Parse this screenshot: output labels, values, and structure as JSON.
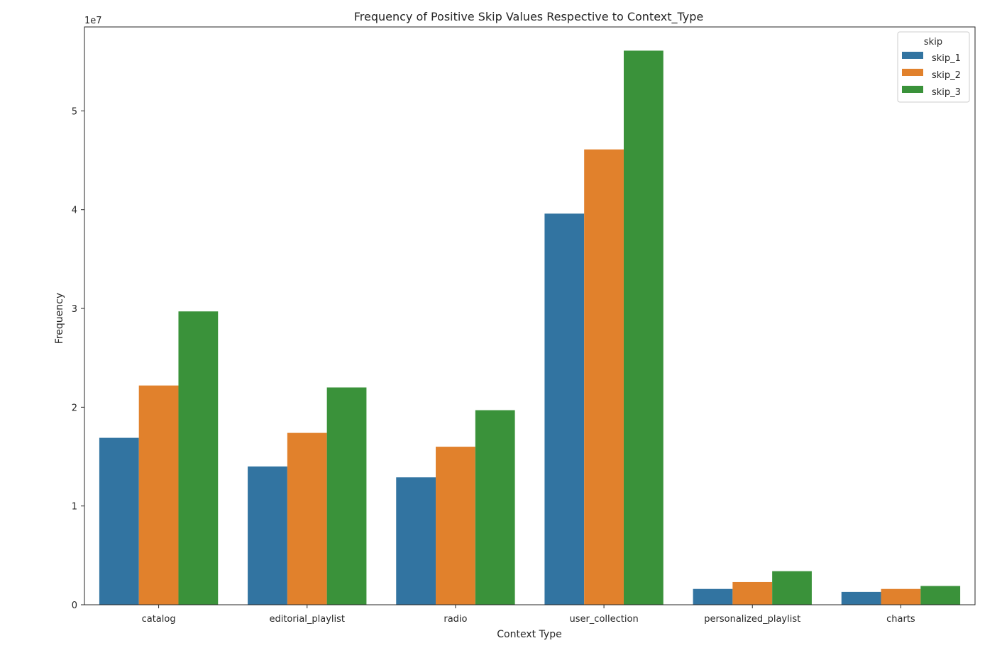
{
  "chart_data": {
    "type": "bar",
    "title": "Frequency of Positive Skip Values Respective to Context_Type",
    "xlabel": "Context Type",
    "ylabel": "Frequency",
    "offset_label": "1e7",
    "categories": [
      "catalog",
      "editorial_playlist",
      "radio",
      "user_collection",
      "personalized_playlist",
      "charts"
    ],
    "series": [
      {
        "name": "skip_1",
        "color": "#3274a1",
        "values": [
          16.9,
          14.0,
          12.9,
          39.6,
          1.6,
          1.3
        ]
      },
      {
        "name": "skip_2",
        "color": "#e1812c",
        "values": [
          22.2,
          17.4,
          16.0,
          46.1,
          2.3,
          1.6
        ]
      },
      {
        "name": "skip_3",
        "color": "#3a923a",
        "values": [
          29.7,
          22.0,
          19.7,
          56.1,
          3.4,
          1.9
        ]
      }
    ],
    "y_unit_note": "values in units of 1e6; axis ticks shown in units of 1e7",
    "yticks": [
      0,
      1,
      2,
      3,
      4,
      5
    ],
    "ytick_labels": [
      "0",
      "1",
      "2",
      "3",
      "4",
      "5"
    ],
    "ylim": [
      0,
      58.5
    ],
    "grid": false,
    "legend": {
      "title": "skip",
      "placement": "top-right"
    }
  }
}
